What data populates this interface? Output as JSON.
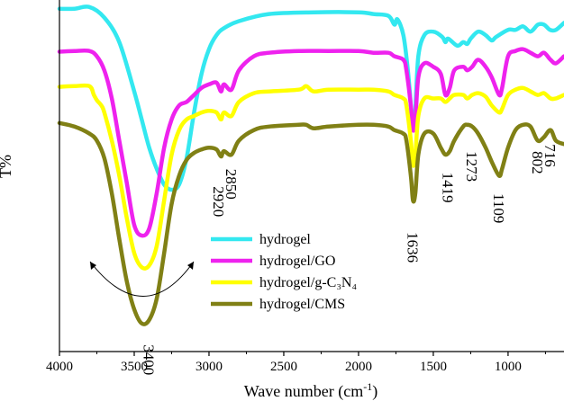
{
  "chart_data": {
    "type": "line",
    "xlabel_main": "Wave number (cm",
    "xlabel_sup": "-1",
    "xlabel_end": ")",
    "ylabel": "T%",
    "xlim": [
      4000,
      626
    ],
    "x_reversed": true,
    "xticks": [
      4000,
      3500,
      3000,
      2500,
      2000,
      1500,
      1000
    ],
    "xtick_labels": [
      "4000",
      "3500",
      "3000",
      "2500",
      "2000",
      "1500",
      "1000"
    ],
    "ylim": [
      0,
      1
    ],
    "ytick_labels_shown": false,
    "series": [
      {
        "name": "hydrogel",
        "color": "#33e8f0",
        "points": [
          [
            4000,
            0.975
          ],
          [
            3900,
            0.975
          ],
          [
            3800,
            0.98
          ],
          [
            3700,
            0.95
          ],
          [
            3600,
            0.88
          ],
          [
            3500,
            0.74
          ],
          [
            3450,
            0.66
          ],
          [
            3400,
            0.58
          ],
          [
            3350,
            0.52
          ],
          [
            3300,
            0.475
          ],
          [
            3250,
            0.46
          ],
          [
            3200,
            0.475
          ],
          [
            3150,
            0.55
          ],
          [
            3100,
            0.68
          ],
          [
            3050,
            0.79
          ],
          [
            3000,
            0.86
          ],
          [
            2950,
            0.9
          ],
          [
            2900,
            0.92
          ],
          [
            2800,
            0.94
          ],
          [
            2600,
            0.96
          ],
          [
            2300,
            0.965
          ],
          [
            2000,
            0.965
          ],
          [
            1900,
            0.96
          ],
          [
            1800,
            0.955
          ],
          [
            1760,
            0.93
          ],
          [
            1740,
            0.945
          ],
          [
            1700,
            0.9
          ],
          [
            1670,
            0.8
          ],
          [
            1650,
            0.7
          ],
          [
            1636,
            0.63
          ],
          [
            1620,
            0.69
          ],
          [
            1600,
            0.84
          ],
          [
            1560,
            0.9
          ],
          [
            1500,
            0.91
          ],
          [
            1440,
            0.895
          ],
          [
            1419,
            0.88
          ],
          [
            1400,
            0.89
          ],
          [
            1340,
            0.87
          ],
          [
            1300,
            0.88
          ],
          [
            1273,
            0.875
          ],
          [
            1250,
            0.89
          ],
          [
            1200,
            0.91
          ],
          [
            1150,
            0.9
          ],
          [
            1109,
            0.885
          ],
          [
            1080,
            0.895
          ],
          [
            1000,
            0.915
          ],
          [
            950,
            0.915
          ],
          [
            900,
            0.925
          ],
          [
            850,
            0.91
          ],
          [
            800,
            0.93
          ],
          [
            760,
            0.93
          ],
          [
            720,
            0.915
          ],
          [
            680,
            0.915
          ],
          [
            626,
            0.935
          ]
        ]
      },
      {
        "name": "hydrogel/GO",
        "color": "#ee22ee",
        "points": [
          [
            4000,
            0.853
          ],
          [
            3900,
            0.855
          ],
          [
            3800,
            0.855
          ],
          [
            3750,
            0.84
          ],
          [
            3700,
            0.8
          ],
          [
            3650,
            0.72
          ],
          [
            3600,
            0.6
          ],
          [
            3550,
            0.48
          ],
          [
            3500,
            0.36
          ],
          [
            3450,
            0.33
          ],
          [
            3400,
            0.35
          ],
          [
            3350,
            0.45
          ],
          [
            3300,
            0.58
          ],
          [
            3250,
            0.66
          ],
          [
            3200,
            0.7
          ],
          [
            3150,
            0.71
          ],
          [
            3100,
            0.73
          ],
          [
            3050,
            0.75
          ],
          [
            3000,
            0.76
          ],
          [
            2950,
            0.765
          ],
          [
            2920,
            0.74
          ],
          [
            2900,
            0.76
          ],
          [
            2850,
            0.745
          ],
          [
            2800,
            0.8
          ],
          [
            2700,
            0.84
          ],
          [
            2600,
            0.85
          ],
          [
            2400,
            0.855
          ],
          [
            2200,
            0.855
          ],
          [
            2000,
            0.855
          ],
          [
            1900,
            0.85
          ],
          [
            1800,
            0.85
          ],
          [
            1760,
            0.84
          ],
          [
            1700,
            0.83
          ],
          [
            1680,
            0.8
          ],
          [
            1650,
            0.7
          ],
          [
            1636,
            0.63
          ],
          [
            1620,
            0.66
          ],
          [
            1600,
            0.78
          ],
          [
            1560,
            0.82
          ],
          [
            1500,
            0.81
          ],
          [
            1450,
            0.79
          ],
          [
            1419,
            0.73
          ],
          [
            1390,
            0.75
          ],
          [
            1360,
            0.8
          ],
          [
            1300,
            0.81
          ],
          [
            1273,
            0.8
          ],
          [
            1240,
            0.81
          ],
          [
            1200,
            0.83
          ],
          [
            1150,
            0.81
          ],
          [
            1109,
            0.78
          ],
          [
            1060,
            0.73
          ],
          [
            1040,
            0.75
          ],
          [
            1000,
            0.84
          ],
          [
            950,
            0.855
          ],
          [
            900,
            0.86
          ],
          [
            850,
            0.85
          ],
          [
            800,
            0.84
          ],
          [
            760,
            0.85
          ],
          [
            716,
            0.83
          ],
          [
            680,
            0.82
          ],
          [
            626,
            0.84
          ]
        ]
      },
      {
        "name": "hydrogel/g-C₃N₄",
        "color": "#ffff00",
        "points": [
          [
            4000,
            0.753
          ],
          [
            3900,
            0.755
          ],
          [
            3800,
            0.755
          ],
          [
            3770,
            0.73
          ],
          [
            3750,
            0.715
          ],
          [
            3720,
            0.7
          ],
          [
            3700,
            0.68
          ],
          [
            3650,
            0.6
          ],
          [
            3600,
            0.5
          ],
          [
            3550,
            0.38
          ],
          [
            3500,
            0.28
          ],
          [
            3450,
            0.24
          ],
          [
            3400,
            0.245
          ],
          [
            3350,
            0.3
          ],
          [
            3300,
            0.43
          ],
          [
            3250,
            0.56
          ],
          [
            3200,
            0.63
          ],
          [
            3150,
            0.66
          ],
          [
            3100,
            0.67
          ],
          [
            3050,
            0.68
          ],
          [
            3000,
            0.685
          ],
          [
            2950,
            0.68
          ],
          [
            2920,
            0.66
          ],
          [
            2900,
            0.68
          ],
          [
            2850,
            0.67
          ],
          [
            2800,
            0.71
          ],
          [
            2700,
            0.735
          ],
          [
            2600,
            0.74
          ],
          [
            2400,
            0.745
          ],
          [
            2350,
            0.755
          ],
          [
            2300,
            0.74
          ],
          [
            2200,
            0.745
          ],
          [
            2000,
            0.745
          ],
          [
            1900,
            0.745
          ],
          [
            1800,
            0.74
          ],
          [
            1760,
            0.73
          ],
          [
            1700,
            0.72
          ],
          [
            1680,
            0.7
          ],
          [
            1650,
            0.6
          ],
          [
            1636,
            0.53
          ],
          [
            1620,
            0.56
          ],
          [
            1600,
            0.67
          ],
          [
            1560,
            0.72
          ],
          [
            1500,
            0.72
          ],
          [
            1450,
            0.72
          ],
          [
            1419,
            0.71
          ],
          [
            1390,
            0.72
          ],
          [
            1360,
            0.73
          ],
          [
            1300,
            0.73
          ],
          [
            1273,
            0.72
          ],
          [
            1240,
            0.73
          ],
          [
            1200,
            0.735
          ],
          [
            1150,
            0.725
          ],
          [
            1109,
            0.7
          ],
          [
            1060,
            0.68
          ],
          [
            1040,
            0.69
          ],
          [
            1000,
            0.73
          ],
          [
            950,
            0.745
          ],
          [
            900,
            0.75
          ],
          [
            850,
            0.74
          ],
          [
            802,
            0.73
          ],
          [
            760,
            0.735
          ],
          [
            716,
            0.72
          ],
          [
            680,
            0.72
          ],
          [
            626,
            0.73
          ]
        ]
      },
      {
        "name": "hydrogel/CMS",
        "color": "#808015",
        "points": [
          [
            4000,
            0.65
          ],
          [
            3900,
            0.64
          ],
          [
            3800,
            0.62
          ],
          [
            3750,
            0.6
          ],
          [
            3700,
            0.55
          ],
          [
            3650,
            0.45
          ],
          [
            3600,
            0.32
          ],
          [
            3550,
            0.2
          ],
          [
            3500,
            0.12
          ],
          [
            3450,
            0.08
          ],
          [
            3400,
            0.09
          ],
          [
            3350,
            0.15
          ],
          [
            3300,
            0.28
          ],
          [
            3250,
            0.42
          ],
          [
            3200,
            0.5
          ],
          [
            3150,
            0.545
          ],
          [
            3100,
            0.565
          ],
          [
            3050,
            0.575
          ],
          [
            3000,
            0.58
          ],
          [
            2950,
            0.575
          ],
          [
            2920,
            0.555
          ],
          [
            2900,
            0.57
          ],
          [
            2850,
            0.56
          ],
          [
            2800,
            0.6
          ],
          [
            2700,
            0.63
          ],
          [
            2600,
            0.64
          ],
          [
            2400,
            0.645
          ],
          [
            2350,
            0.645
          ],
          [
            2300,
            0.635
          ],
          [
            2200,
            0.64
          ],
          [
            2000,
            0.645
          ],
          [
            1900,
            0.645
          ],
          [
            1800,
            0.64
          ],
          [
            1760,
            0.63
          ],
          [
            1700,
            0.62
          ],
          [
            1680,
            0.6
          ],
          [
            1650,
            0.5
          ],
          [
            1636,
            0.43
          ],
          [
            1620,
            0.45
          ],
          [
            1600,
            0.56
          ],
          [
            1560,
            0.62
          ],
          [
            1500,
            0.62
          ],
          [
            1450,
            0.58
          ],
          [
            1419,
            0.56
          ],
          [
            1390,
            0.57
          ],
          [
            1360,
            0.6
          ],
          [
            1300,
            0.64
          ],
          [
            1273,
            0.645
          ],
          [
            1240,
            0.64
          ],
          [
            1200,
            0.62
          ],
          [
            1150,
            0.58
          ],
          [
            1109,
            0.54
          ],
          [
            1060,
            0.5
          ],
          [
            1040,
            0.52
          ],
          [
            1000,
            0.58
          ],
          [
            950,
            0.63
          ],
          [
            900,
            0.645
          ],
          [
            850,
            0.64
          ],
          [
            802,
            0.6
          ],
          [
            760,
            0.61
          ],
          [
            716,
            0.63
          ],
          [
            680,
            0.6
          ],
          [
            626,
            0.59
          ]
        ]
      }
    ],
    "annotations": [
      {
        "text": "3400",
        "x": 3400,
        "y": 0.02,
        "rotate": 90
      },
      {
        "text": "2920",
        "x": 2935,
        "y": 0.47,
        "rotate": 90
      },
      {
        "text": "2850",
        "x": 2850,
        "y": 0.52,
        "rotate": 90
      },
      {
        "text": "1636",
        "x": 1636,
        "y": 0.34,
        "rotate": 90
      },
      {
        "text": "1419",
        "x": 1400,
        "y": 0.51,
        "rotate": 90
      },
      {
        "text": "1273",
        "x": 1240,
        "y": 0.57,
        "rotate": 90
      },
      {
        "text": "1109",
        "x": 1060,
        "y": 0.45,
        "rotate": 90
      },
      {
        "text": "802",
        "x": 802,
        "y": 0.57,
        "rotate": 90
      },
      {
        "text": "716",
        "x": 716,
        "y": 0.59,
        "rotate": 90
      }
    ],
    "legend_position": "lower-center"
  }
}
